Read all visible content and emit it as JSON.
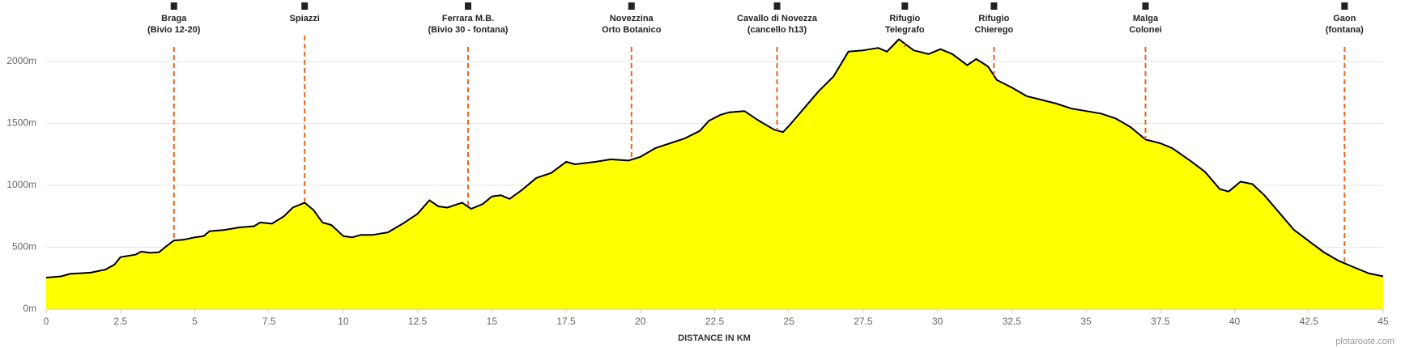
{
  "chart_data": {
    "type": "area",
    "x_label": "DISTANCE IN KM",
    "credit": "plotaroute.com",
    "color": "#ffff00",
    "line_color": "#000000",
    "grid": true,
    "xlim": [
      0,
      45
    ],
    "ylim": [
      0,
      2000
    ],
    "xticks": [
      0,
      2.5,
      5,
      7.5,
      10,
      12.5,
      15,
      17.5,
      20,
      22.5,
      25,
      27.5,
      30,
      32.5,
      35,
      37.5,
      40,
      42.5,
      45
    ],
    "yticks": [
      {
        "value": 0,
        "label": "0m"
      },
      {
        "value": 500,
        "label": "500m"
      },
      {
        "value": 1000,
        "label": "1000m"
      },
      {
        "value": 1500,
        "label": "1500m"
      },
      {
        "value": 2000,
        "label": "2000m"
      }
    ],
    "x": [
      0,
      0.5,
      0.8,
      1.5,
      2,
      2.3,
      2.5,
      3,
      3.2,
      3.5,
      3.8,
      4,
      4.3,
      4.6,
      5,
      5.3,
      5.5,
      6,
      6.5,
      7,
      7.2,
      7.6,
      8,
      8.3,
      8.7,
      9,
      9.3,
      9.6,
      10,
      10.3,
      10.6,
      11,
      11.5,
      12,
      12.5,
      12.9,
      13.2,
      13.5,
      14,
      14.3,
      14.7,
      15,
      15.3,
      15.6,
      16,
      16.5,
      17,
      17.5,
      17.8,
      18.5,
      19,
      19.6,
      20,
      20.5,
      21,
      21.5,
      22,
      22.3,
      22.7,
      23,
      23.5,
      24,
      24.5,
      24.8,
      25,
      25.5,
      26,
      26.5,
      27,
      27.5,
      28,
      28.3,
      28.7,
      29.2,
      29.7,
      30.1,
      30.5,
      31,
      31.3,
      31.7,
      32,
      32.5,
      33,
      33.5,
      34,
      34.5,
      35,
      35.5,
      36,
      36.5,
      37,
      37.5,
      37.9,
      38.5,
      39,
      39.5,
      39.8,
      40.2,
      40.6,
      41,
      41.5,
      42,
      42.5,
      43,
      43.5,
      44,
      44.5,
      45
    ],
    "values": [
      255,
      265,
      285,
      295,
      320,
      360,
      420,
      440,
      465,
      455,
      460,
      500,
      555,
      560,
      580,
      590,
      630,
      640,
      660,
      670,
      700,
      690,
      750,
      820,
      860,
      800,
      700,
      680,
      590,
      580,
      600,
      600,
      620,
      690,
      770,
      880,
      830,
      820,
      860,
      810,
      850,
      910,
      920,
      890,
      960,
      1060,
      1100,
      1190,
      1170,
      1190,
      1210,
      1200,
      1230,
      1300,
      1340,
      1380,
      1440,
      1520,
      1570,
      1590,
      1600,
      1520,
      1450,
      1430,
      1480,
      1620,
      1760,
      1880,
      2080,
      2090,
      2110,
      2080,
      2180,
      2090,
      2060,
      2100,
      2060,
      1970,
      2020,
      1960,
      1850,
      1790,
      1720,
      1690,
      1660,
      1620,
      1600,
      1580,
      1540,
      1470,
      1370,
      1340,
      1300,
      1200,
      1110,
      970,
      950,
      1030,
      1010,
      920,
      780,
      640,
      550,
      460,
      390,
      340,
      290,
      265
    ],
    "waypoints": [
      {
        "x": 4.3,
        "label": [
          "Braga",
          "(Bivio 12-20)"
        ]
      },
      {
        "x": 8.7,
        "label": [
          "Spiazzi"
        ]
      },
      {
        "x": 14.2,
        "label": [
          "Ferrara M.B.",
          "(Bivio 30 - fontana)"
        ]
      },
      {
        "x": 19.7,
        "label": [
          "Novezzina",
          "Orto Botanico"
        ]
      },
      {
        "x": 24.6,
        "label": [
          "Cavallo di Novezza",
          "(cancello h13)"
        ]
      },
      {
        "x": 28.9,
        "label": [
          "Rifugio",
          "Telegrafo"
        ]
      },
      {
        "x": 31.9,
        "label": [
          "Rifugio",
          "Chierego"
        ]
      },
      {
        "x": 37.0,
        "label": [
          "Malga",
          "Colonei"
        ]
      },
      {
        "x": 43.7,
        "label": [
          "Gaon",
          "(fontana)"
        ]
      }
    ],
    "waypoint_color": "#e8641e"
  }
}
